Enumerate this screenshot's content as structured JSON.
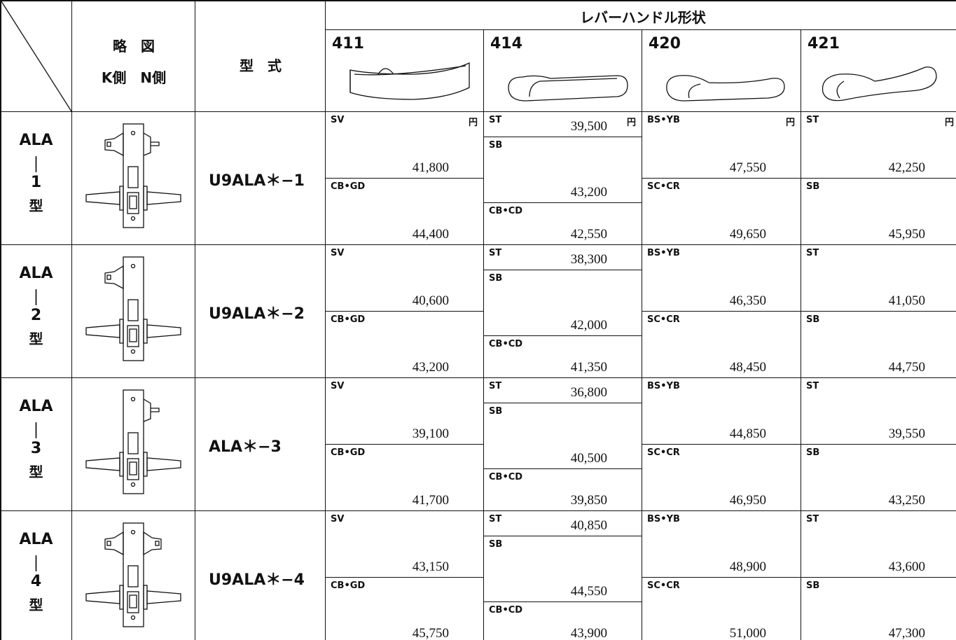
{
  "header": {
    "sketch_title": "略　図",
    "sketch_sides": "K側　N側",
    "model_title": "型　式",
    "lever_title": "レバーハンドル形状",
    "lever_types": [
      "411",
      "414",
      "420",
      "421"
    ],
    "unit": "円"
  },
  "rows": [
    {
      "type": [
        "ALA",
        "｜",
        "1",
        "型"
      ],
      "model": "U9ALA＊−1",
      "cells": [
        [
          {
            "finish": "SV",
            "price": "41,800"
          },
          {
            "finish": "CB•GD",
            "price": "44,400"
          }
        ],
        [
          {
            "finish": "ST",
            "price": "39,500"
          },
          {
            "finish": "SB",
            "price": "43,200"
          },
          {
            "finish": "CB•CD",
            "price": "42,550"
          }
        ],
        [
          {
            "finish": "BS•YB",
            "price": "47,550"
          },
          {
            "finish": "SC•CR",
            "price": "49,650"
          }
        ],
        [
          {
            "finish": "ST",
            "price": "42,250"
          },
          {
            "finish": "SB",
            "price": "45,950"
          }
        ]
      ]
    },
    {
      "type": [
        "ALA",
        "｜",
        "2",
        "型"
      ],
      "model": "U9ALA＊−2",
      "cells": [
        [
          {
            "finish": "SV",
            "price": "40,600"
          },
          {
            "finish": "CB•GD",
            "price": "43,200"
          }
        ],
        [
          {
            "finish": "ST",
            "price": "38,300"
          },
          {
            "finish": "SB",
            "price": "42,000"
          },
          {
            "finish": "CB•CD",
            "price": "41,350"
          }
        ],
        [
          {
            "finish": "BS•YB",
            "price": "46,350"
          },
          {
            "finish": "SC•CR",
            "price": "48,450"
          }
        ],
        [
          {
            "finish": "ST",
            "price": "41,050"
          },
          {
            "finish": "SB",
            "price": "44,750"
          }
        ]
      ]
    },
    {
      "type": [
        "ALA",
        "｜",
        "3",
        "型"
      ],
      "model": "ALA＊−3",
      "cells": [
        [
          {
            "finish": "SV",
            "price": "39,100"
          },
          {
            "finish": "CB•GD",
            "price": "41,700"
          }
        ],
        [
          {
            "finish": "ST",
            "price": "36,800"
          },
          {
            "finish": "SB",
            "price": "40,500"
          },
          {
            "finish": "CB•CD",
            "price": "39,850"
          }
        ],
        [
          {
            "finish": "BS•YB",
            "price": "44,850"
          },
          {
            "finish": "SC•CR",
            "price": "46,950"
          }
        ],
        [
          {
            "finish": "ST",
            "price": "39,550"
          },
          {
            "finish": "SB",
            "price": "43,250"
          }
        ]
      ]
    },
    {
      "type": [
        "ALA",
        "｜",
        "4",
        "型"
      ],
      "model": "U9ALA＊−4",
      "cells": [
        [
          {
            "finish": "SV",
            "price": "43,150"
          },
          {
            "finish": "CB•GD",
            "price": "45,750"
          }
        ],
        [
          {
            "finish": "ST",
            "price": "40,850"
          },
          {
            "finish": "SB",
            "price": "44,550"
          },
          {
            "finish": "CB•CD",
            "price": "43,900"
          }
        ],
        [
          {
            "finish": "BS•YB",
            "price": "48,900"
          },
          {
            "finish": "SC•CR",
            "price": "51,000"
          }
        ],
        [
          {
            "finish": "ST",
            "price": "43,600"
          },
          {
            "finish": "SB",
            "price": "47,300"
          }
        ]
      ]
    }
  ]
}
